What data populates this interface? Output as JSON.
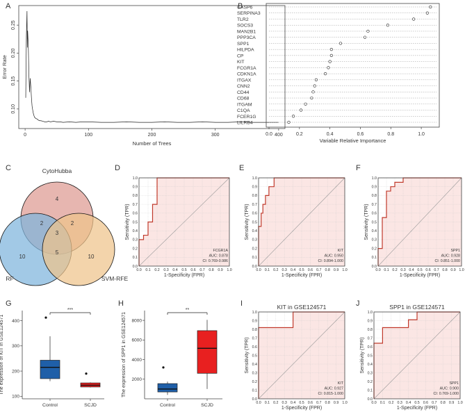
{
  "panels": {
    "A": {
      "letter": "A",
      "chart_data": {
        "type": "line",
        "xlabel": "Number of Trees",
        "ylabel": "Error Rate",
        "xlim": [
          -10,
          410
        ],
        "ylim": [
          0.065,
          0.285
        ],
        "xticks": [
          0,
          100,
          200,
          300,
          400
        ],
        "yticks": [
          0.1,
          0.15,
          0.2,
          0.25
        ],
        "ytick_labels": [
          "0.10",
          "0.15",
          "0.20",
          "0.25"
        ],
        "series": [
          {
            "name": "Error Rate",
            "x": [
              1,
              2,
              3,
              3.5,
              4,
              5,
              6,
              7,
              8,
              9,
              10,
              11,
              12,
              13,
              14,
              15,
              17,
              19,
              21,
              23,
              25,
              28,
              31,
              34,
              37,
              40,
              45,
              50,
              55,
              60,
              70,
              80,
              90,
              100,
              120,
              140,
              160,
              180,
              200,
              220,
              240,
              260,
              280,
              300,
              320,
              340,
              360,
              380,
              400
            ],
            "y": [
              0.12,
              0.23,
              0.275,
              0.21,
              0.24,
              0.215,
              0.16,
              0.13,
              0.155,
              0.14,
              0.12,
              0.105,
              0.098,
              0.092,
              0.088,
              0.085,
              0.083,
              0.082,
              0.08,
              0.079,
              0.079,
              0.078,
              0.077,
              0.077,
              0.078,
              0.077,
              0.078,
              0.077,
              0.077,
              0.076,
              0.077,
              0.076,
              0.077,
              0.077,
              0.076,
              0.076,
              0.077,
              0.076,
              0.076,
              0.077,
              0.076,
              0.076,
              0.077,
              0.076,
              0.076,
              0.077,
              0.076,
              0.076,
              0.076
            ]
          }
        ]
      }
    },
    "B": {
      "letter": "B",
      "chart_data": {
        "type": "scatter",
        "xlabel": "Variable Relative Importance",
        "xlim": [
          0,
          1.1
        ],
        "xticks": [
          0.0,
          0.2,
          0.4,
          0.6,
          0.8,
          1.0
        ],
        "xtick_labels": [
          "0.0",
          "0.2",
          "0.4",
          "0.6",
          "0.8",
          "1.0"
        ],
        "categories": [
          "CASP6",
          "SERPINA3",
          "TLR2",
          "SOCS3",
          "MAN2B1",
          "PPP3CA",
          "SPP1",
          "HILPDA",
          "CP",
          "KIT",
          "FCGR1A",
          "CDKN1A",
          "ITGAX",
          "CNN2",
          "CD44",
          "CD68",
          "ITGAM",
          "C1QA",
          "FCER1G",
          "LILRB4"
        ],
        "values": [
          1.06,
          1.04,
          0.95,
          0.78,
          0.65,
          0.63,
          0.47,
          0.41,
          0.41,
          0.4,
          0.39,
          0.37,
          0.31,
          0.3,
          0.29,
          0.28,
          0.24,
          0.21,
          0.16,
          0.13
        ]
      }
    },
    "C": {
      "letter": "C",
      "venn": {
        "sets": [
          "CytoHubba",
          "RF",
          "SVM-RFE"
        ],
        "colors": [
          "#de9a92",
          "#7eb4dc",
          "#efc38a"
        ],
        "regions": {
          "top_only": "4",
          "left_only": "10",
          "right_only": "10",
          "top_left": "2",
          "top_right": "2",
          "left_right": "5",
          "center": "3"
        }
      }
    },
    "D": {
      "letter": "D",
      "chart_data": {
        "type": "line",
        "xlabel": "1-Specificity (FPR)",
        "ylabel": "Sensitivity (TPR)",
        "xlim": [
          0,
          1
        ],
        "ylim": [
          0,
          1
        ],
        "ticks": [
          0.0,
          0.1,
          0.2,
          0.3,
          0.4,
          0.5,
          0.6,
          0.7,
          0.8,
          0.9,
          1.0
        ],
        "tick_labels": [
          "0.0",
          "0.1",
          "0.2",
          "0.3",
          "0.4",
          "0.5",
          "0.6",
          "0.7",
          "0.8",
          "0.9",
          "1.0"
        ],
        "fpr": [
          0,
          0,
          0.05,
          0.05,
          0.1,
          0.1,
          0.15,
          0.15,
          0.2,
          0.2,
          1
        ],
        "tpr": [
          0,
          0.3,
          0.3,
          0.35,
          0.35,
          0.5,
          0.5,
          0.7,
          0.7,
          1,
          1
        ],
        "annotation": [
          "FCGR1A",
          "AUC: 0.878",
          "CI: 0.769-0.986"
        ]
      }
    },
    "E": {
      "letter": "E",
      "chart_data": {
        "type": "line",
        "xlabel": "1-Specificity (FPR)",
        "ylabel": "Sensitivity (TPR)",
        "xlim": [
          0,
          1
        ],
        "ylim": [
          0,
          1
        ],
        "ticks": [
          0.0,
          0.1,
          0.2,
          0.3,
          0.4,
          0.5,
          0.6,
          0.7,
          0.8,
          0.9,
          1.0
        ],
        "tick_labels": [
          "0.0",
          "0.1",
          "0.2",
          "0.3",
          "0.4",
          "0.5",
          "0.6",
          "0.7",
          "0.8",
          "0.9",
          "1.0"
        ],
        "fpr": [
          0,
          0,
          0.03,
          0.03,
          0.05,
          0.05,
          0.08,
          0.08,
          0.12,
          0.12,
          0.18,
          0.18,
          1
        ],
        "tpr": [
          0,
          0.45,
          0.45,
          0.6,
          0.6,
          0.7,
          0.7,
          0.8,
          0.8,
          0.9,
          0.9,
          1,
          1
        ],
        "annotation": [
          "KIT",
          "AUC: 0.950",
          "CI: 0.894-1.000"
        ]
      }
    },
    "F": {
      "letter": "F",
      "chart_data": {
        "type": "line",
        "xlabel": "1-Specificity (FPR)",
        "ylabel": "Sensitivity (TPR)",
        "xlim": [
          0,
          1
        ],
        "ylim": [
          0,
          1
        ],
        "ticks": [
          0.0,
          0.1,
          0.2,
          0.3,
          0.4,
          0.5,
          0.6,
          0.7,
          0.8,
          0.9,
          1.0
        ],
        "tick_labels": [
          "0.0",
          "0.1",
          "0.2",
          "0.3",
          "0.4",
          "0.5",
          "0.6",
          "0.7",
          "0.8",
          "0.9",
          "1.0"
        ],
        "fpr": [
          0,
          0,
          0.05,
          0.05,
          0.1,
          0.1,
          0.15,
          0.15,
          0.2,
          0.2,
          0.3,
          0.3,
          1
        ],
        "tpr": [
          0,
          0.2,
          0.2,
          0.55,
          0.55,
          0.85,
          0.85,
          0.9,
          0.9,
          0.95,
          0.95,
          1,
          1
        ],
        "annotation": [
          "SPP1",
          "AUC: 0.928",
          "CI: 0.851-1.000"
        ]
      }
    },
    "G": {
      "letter": "G",
      "chart_data": {
        "type": "box",
        "ylabel": "The expression of KIT in GSE124571",
        "categories": [
          "Control",
          "SCJD"
        ],
        "ylim": [
          90,
          440
        ],
        "yticks": [
          100,
          200,
          300,
          400
        ],
        "boxes": [
          {
            "min": 160,
            "q1": 170,
            "median": 215,
            "q3": 243,
            "max": 338,
            "outliers": [
              412
            ],
            "color": "#1f5fa8"
          },
          {
            "min": 135,
            "q1": 137,
            "median": 144,
            "q3": 153,
            "max": 155,
            "outliers": [
              190
            ],
            "color": "#e82020"
          }
        ],
        "significance": "***"
      }
    },
    "H": {
      "letter": "H",
      "chart_data": {
        "type": "box",
        "ylabel": "The expression of SPP1 in GSE124571",
        "categories": [
          "Control",
          "SCJD"
        ],
        "ylim": [
          0,
          9000
        ],
        "yticks": [
          2000,
          4000,
          6000,
          8000
        ],
        "boxes": [
          {
            "min": 400,
            "q1": 700,
            "median": 1000,
            "q3": 1550,
            "max": 1750,
            "outliers": [
              3200
            ],
            "color": "#1f5fa8"
          },
          {
            "min": 1000,
            "q1": 2600,
            "median": 5150,
            "q3": 6950,
            "max": 8050,
            "outliers": [],
            "color": "#e82020"
          }
        ],
        "significance": "**"
      }
    },
    "I": {
      "letter": "I",
      "chart_data": {
        "type": "line",
        "title": "KIT in GSE124571",
        "xlabel": "1-Specificity (FPR)",
        "ylabel": "Sensitivity (TPR)",
        "xlim": [
          0,
          1
        ],
        "ylim": [
          0,
          1
        ],
        "ticks": [
          0.0,
          0.1,
          0.2,
          0.3,
          0.4,
          0.5,
          0.6,
          0.7,
          0.8,
          0.9,
          1.0
        ],
        "tick_labels": [
          "0.0",
          "0.1",
          "0.2",
          "0.3",
          "0.4",
          "0.5",
          "0.6",
          "0.7",
          "0.8",
          "0.9",
          "1.0"
        ],
        "fpr": [
          0,
          0,
          0.4,
          0.4,
          1
        ],
        "tpr": [
          0,
          0.82,
          0.82,
          1,
          1
        ],
        "annotation": [
          "KIT",
          "AUC: 0.927",
          "CI: 0.815-1.000"
        ]
      }
    },
    "J": {
      "letter": "J",
      "chart_data": {
        "type": "line",
        "title": "SPP1 in GSE124571",
        "xlabel": "1-Specificity (FPR)",
        "ylabel": "Sensitivity (TPR)",
        "xlim": [
          0,
          1
        ],
        "ylim": [
          0,
          1
        ],
        "ticks": [
          0.0,
          0.1,
          0.2,
          0.3,
          0.4,
          0.5,
          0.6,
          0.7,
          0.8,
          0.9,
          1.0
        ],
        "tick_labels": [
          "0.0",
          "0.1",
          "0.2",
          "0.3",
          "0.4",
          "0.5",
          "0.6",
          "0.7",
          "0.8",
          "0.9",
          "1.0"
        ],
        "fpr": [
          0,
          0,
          0.1,
          0.1,
          0.4,
          0.4,
          0.5,
          0.5,
          1
        ],
        "tpr": [
          0,
          0.64,
          0.64,
          0.82,
          0.82,
          0.91,
          0.91,
          1,
          1
        ],
        "annotation": [
          "SPP1",
          "AUC: 0.900",
          "CI: 0.769-1.000"
        ]
      }
    }
  },
  "colors": {
    "roc_line": "#c0392b",
    "roc_fill": "#fbe6e4",
    "grid": "#c8c8c8",
    "axis": "#444444",
    "text": "#333333"
  }
}
